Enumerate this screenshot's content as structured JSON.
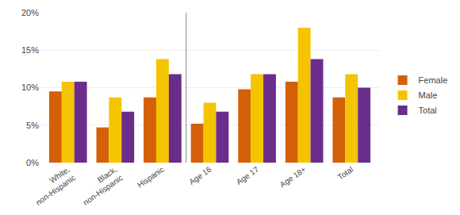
{
  "chart_data": {
    "type": "bar",
    "categories": [
      "White,\nnon-Hispanic",
      "Black,\nnon-Hispanic",
      "Hispanic",
      "Age 16",
      "Age 17",
      "Age 18+",
      "Total"
    ],
    "series": [
      {
        "name": "Female",
        "color": "#D4600A",
        "values": [
          9.5,
          4.7,
          8.7,
          5.2,
          9.8,
          10.8,
          8.7
        ]
      },
      {
        "name": "Male",
        "color": "#F5C400",
        "values": [
          10.8,
          8.7,
          13.8,
          8.0,
          11.8,
          18.0,
          11.8
        ]
      },
      {
        "name": "Total",
        "color": "#6B2D8B",
        "values": [
          10.8,
          6.8,
          11.8,
          6.8,
          11.8,
          13.8,
          10.0
        ]
      }
    ],
    "ylim": [
      0,
      20
    ],
    "yticks": [
      {
        "value": 0,
        "label": "0%"
      },
      {
        "value": 5,
        "label": "5%"
      },
      {
        "value": 10,
        "label": "10%"
      },
      {
        "value": 15,
        "label": "15%"
      },
      {
        "value": 20,
        "label": "20%"
      }
    ],
    "grid": true,
    "legend": "right"
  }
}
